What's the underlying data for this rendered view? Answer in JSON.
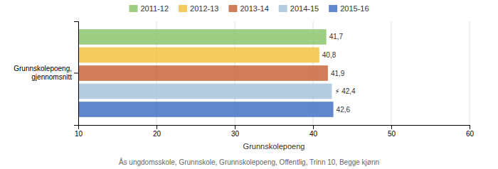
{
  "chart_data": {
    "type": "bar",
    "orientation": "horizontal",
    "categories": [
      "Grunnskolepoeng,\ngjennomsnitt"
    ],
    "series": [
      {
        "name": "2011-12",
        "color": "#8CC56E",
        "values": [
          41.7
        ],
        "value_labels": [
          "41,7"
        ]
      },
      {
        "name": "2012-13",
        "color": "#F5C242",
        "values": [
          40.8
        ],
        "value_labels": [
          "40,8"
        ]
      },
      {
        "name": "2013-14",
        "color": "#C9663C",
        "values": [
          41.9
        ],
        "value_labels": [
          "41,9"
        ]
      },
      {
        "name": "2014-15",
        "color": "#A8C4D8",
        "values": [
          42.4
        ],
        "value_labels": [
          "⚡ 42,4"
        ]
      },
      {
        "name": "2015-16",
        "color": "#4472C4",
        "values": [
          42.6
        ],
        "value_labels": [
          "42,6"
        ]
      }
    ],
    "xlim": [
      10,
      60
    ],
    "xticks": [
      10,
      20,
      30,
      40,
      50,
      60
    ],
    "xlabel": "Grunnskolepoeng",
    "annotations": [
      "Ås ungdomsskole, Grunnskole, Grunnskolepoeng, Offentlig, Trinn 10, Begge kjønn"
    ],
    "grid": true,
    "legend": "top",
    "data_labels": true
  }
}
